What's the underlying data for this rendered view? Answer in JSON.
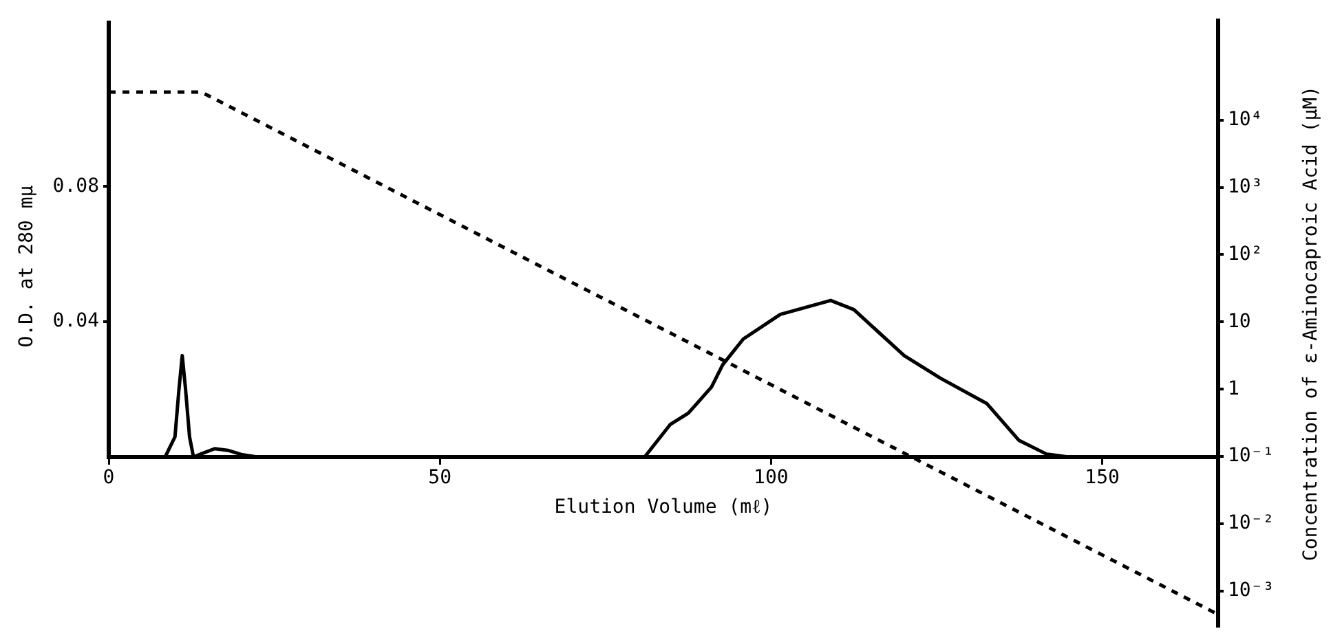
{
  "chart_data": {
    "type": "line",
    "xlabel": "Elution Volume (mℓ)",
    "ylabel": "O.D. at 280 mμ",
    "y2label": "Concentration of ε-Aminocaproic Acid (μM)",
    "xlim": [
      0,
      167.5
    ],
    "xticks": [
      0,
      50,
      100,
      150
    ],
    "ylim": [
      -0.05,
      0.129
    ],
    "yticks": [
      0.04,
      0.08
    ],
    "y2lim": [
      0.0003,
      300000
    ],
    "log": "y2",
    "y2ticks": [
      {
        "value": 10000,
        "label": "10⁴"
      },
      {
        "value": 1000,
        "label": "10³"
      },
      {
        "value": 100,
        "label": "10²"
      },
      10,
      1,
      {
        "value": 0.1,
        "label": "10⁻¹"
      },
      {
        "value": 0.01,
        "label": "10⁻²"
      },
      {
        "value": 0.001,
        "label": "10⁻³"
      }
    ],
    "grid": false,
    "legend": false,
    "series": [
      {
        "color": "#000000",
        "line_style": "solid",
        "x": [
          0,
          8.5,
          10,
          10.6,
          11.1,
          11.6,
          12.2,
          12.8,
          14,
          16,
          18,
          20,
          22.5,
          80,
          80.9,
          84.8,
          87.5,
          91,
          92.7,
          95.8,
          101.4,
          109,
          112.5,
          120.1,
          125.6,
          132.6,
          137.4,
          141.6,
          145,
          167.5
        ],
        "values": [
          0,
          0,
          0.006,
          0.02,
          0.03,
          0.02,
          0.006,
          0,
          0.001,
          0.0025,
          0.002,
          0.0008,
          0,
          0,
          0,
          0.0097,
          0.013,
          0.0207,
          0.0273,
          0.0349,
          0.0422,
          0.0463,
          0.0436,
          0.03,
          0.0233,
          0.0158,
          0.005,
          0.0009,
          0,
          0
        ]
      },
      {
        "color": "#000000",
        "line_style": "dashed",
        "axis": "y2",
        "x": [
          0,
          14,
          167.5
        ],
        "values": [
          26000,
          26000,
          0.00045
        ]
      }
    ]
  }
}
